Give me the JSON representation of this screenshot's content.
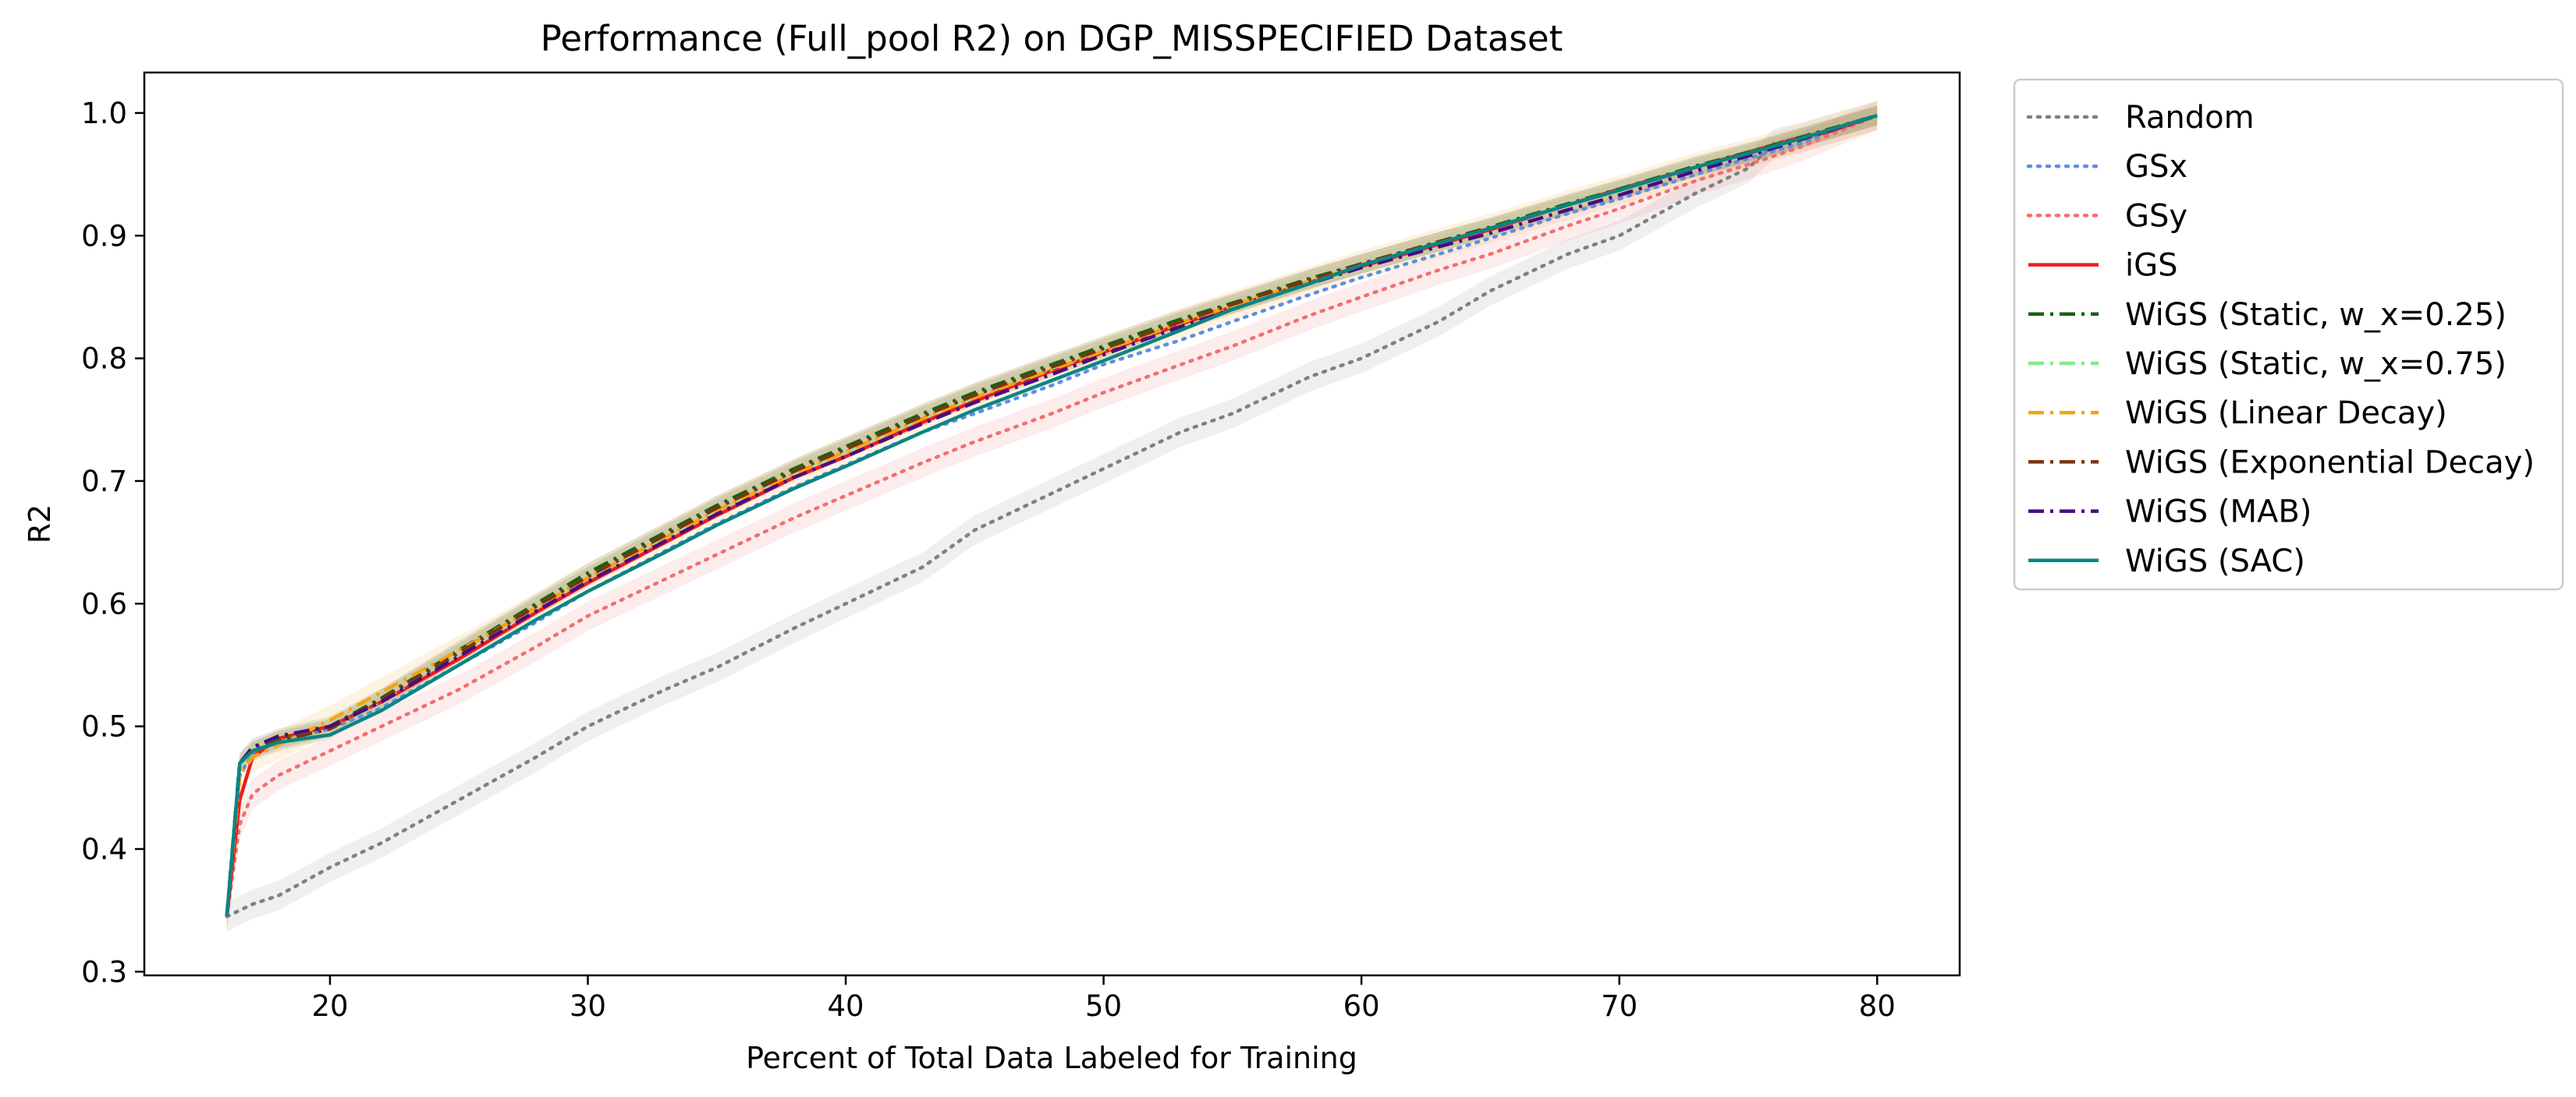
{
  "chart_data": {
    "type": "line",
    "title": "Performance (Full_pool R2) on DGP_MISSPECIFIED Dataset",
    "xlabel": "Percent of Total Data Labeled for Training",
    "ylabel": "R2",
    "xlim": [
      12.8,
      83.2
    ],
    "ylim": [
      0.297,
      1.033
    ],
    "xticks": [
      20,
      30,
      40,
      50,
      60,
      70,
      80
    ],
    "yticks": [
      0.3,
      0.4,
      0.5,
      0.6,
      0.7,
      0.8,
      0.9,
      1.0
    ],
    "xtick_labels": [
      "20",
      "30",
      "40",
      "50",
      "60",
      "70",
      "80"
    ],
    "ytick_labels": [
      "0.3",
      "0.4",
      "0.5",
      "0.6",
      "0.7",
      "0.8",
      "0.9",
      "1.0"
    ],
    "grid": false,
    "legend_position": "outside-right-top",
    "series": [
      {
        "name": "Random",
        "color": "#808080",
        "dash": "dotted",
        "band": 0.012,
        "x": [
          16,
          17,
          18,
          20,
          22,
          25,
          28,
          30,
          33,
          35,
          38,
          40,
          43,
          45,
          48,
          50,
          53,
          55,
          58,
          60,
          63,
          65,
          68,
          70,
          73,
          75,
          76,
          77,
          80
        ],
        "y": [
          0.345,
          0.355,
          0.362,
          0.385,
          0.405,
          0.44,
          0.475,
          0.5,
          0.53,
          0.548,
          0.58,
          0.6,
          0.63,
          0.66,
          0.69,
          0.71,
          0.74,
          0.755,
          0.785,
          0.8,
          0.83,
          0.855,
          0.885,
          0.9,
          0.935,
          0.955,
          0.975,
          0.98,
          0.998
        ]
      },
      {
        "name": "GSx",
        "color": "#5b8fe6",
        "dash": "dotted",
        "band": 0,
        "x": [
          16,
          16.5,
          17,
          18,
          20,
          22,
          25,
          28,
          30,
          33,
          35,
          38,
          40,
          43,
          45,
          48,
          50,
          53,
          55,
          58,
          60,
          63,
          65,
          68,
          70,
          73,
          75,
          77,
          80
        ],
        "y": [
          0.345,
          0.46,
          0.478,
          0.488,
          0.498,
          0.515,
          0.55,
          0.585,
          0.61,
          0.643,
          0.665,
          0.695,
          0.713,
          0.74,
          0.755,
          0.778,
          0.795,
          0.815,
          0.83,
          0.852,
          0.866,
          0.885,
          0.898,
          0.918,
          0.93,
          0.95,
          0.963,
          0.975,
          0.998
        ]
      },
      {
        "name": "GSy",
        "color": "#f07070",
        "dash": "dotted",
        "band": 0.012,
        "x": [
          16,
          16.5,
          17,
          18,
          20,
          22,
          25,
          28,
          30,
          33,
          35,
          38,
          40,
          43,
          45,
          48,
          50,
          53,
          55,
          58,
          60,
          63,
          65,
          68,
          70,
          73,
          75,
          77,
          80
        ],
        "y": [
          0.345,
          0.42,
          0.445,
          0.46,
          0.48,
          0.5,
          0.53,
          0.565,
          0.59,
          0.62,
          0.64,
          0.67,
          0.688,
          0.715,
          0.732,
          0.755,
          0.772,
          0.795,
          0.81,
          0.835,
          0.85,
          0.872,
          0.885,
          0.908,
          0.922,
          0.945,
          0.958,
          0.972,
          0.998
        ]
      },
      {
        "name": "iGS",
        "color": "#ee1c1c",
        "dash": "solid",
        "band": 0,
        "x": [
          16,
          16.5,
          17,
          18,
          20,
          22,
          25,
          28,
          30,
          33,
          35,
          38,
          40,
          43,
          45,
          48,
          50,
          53,
          55,
          58,
          60,
          63,
          65,
          68,
          70,
          73,
          75,
          77,
          78,
          80
        ],
        "y": [
          0.345,
          0.44,
          0.475,
          0.49,
          0.5,
          0.52,
          0.555,
          0.593,
          0.617,
          0.65,
          0.672,
          0.703,
          0.72,
          0.748,
          0.765,
          0.79,
          0.805,
          0.828,
          0.842,
          0.862,
          0.875,
          0.893,
          0.905,
          0.925,
          0.938,
          0.956,
          0.968,
          0.98,
          0.984,
          0.998
        ]
      },
      {
        "name": "WiGS (Static, w_x=0.25)",
        "color": "#156315",
        "dash": "dashdot",
        "band": 0.008,
        "x": [
          16,
          16.5,
          17,
          18,
          20,
          22,
          25,
          28,
          30,
          33,
          35,
          38,
          40,
          43,
          45,
          48,
          50,
          53,
          55,
          58,
          60,
          63,
          65,
          68,
          70,
          73,
          75,
          77,
          80
        ],
        "y": [
          0.345,
          0.47,
          0.482,
          0.49,
          0.5,
          0.523,
          0.562,
          0.6,
          0.625,
          0.658,
          0.68,
          0.71,
          0.728,
          0.755,
          0.772,
          0.795,
          0.81,
          0.832,
          0.845,
          0.865,
          0.877,
          0.895,
          0.907,
          0.926,
          0.938,
          0.957,
          0.968,
          0.98,
          0.998
        ]
      },
      {
        "name": "WiGS (Static, w_x=0.75)",
        "color": "#86e886",
        "dash": "dashdot",
        "band": 0.006,
        "x": [
          16,
          16.5,
          17,
          18,
          20,
          22,
          25,
          28,
          30,
          33,
          35,
          38,
          40,
          43,
          45,
          48,
          50,
          53,
          55,
          58,
          60,
          63,
          65,
          68,
          70,
          73,
          75,
          77,
          80
        ],
        "y": [
          0.345,
          0.468,
          0.48,
          0.488,
          0.498,
          0.521,
          0.56,
          0.598,
          0.622,
          0.655,
          0.677,
          0.707,
          0.725,
          0.752,
          0.769,
          0.792,
          0.807,
          0.83,
          0.843,
          0.863,
          0.876,
          0.894,
          0.906,
          0.925,
          0.937,
          0.956,
          0.967,
          0.979,
          0.998
        ]
      },
      {
        "name": "WiGS (Linear Decay)",
        "color": "#f5a316",
        "dash": "dashdot",
        "band": 0.012,
        "x": [
          16,
          16.5,
          17,
          18,
          20,
          22,
          25,
          28,
          30,
          33,
          35,
          38,
          40,
          43,
          45,
          48,
          50,
          53,
          55,
          58,
          60,
          63,
          65,
          68,
          70,
          73,
          75,
          77,
          80
        ],
        "y": [
          0.345,
          0.46,
          0.475,
          0.485,
          0.505,
          0.528,
          0.562,
          0.597,
          0.621,
          0.654,
          0.676,
          0.706,
          0.724,
          0.751,
          0.768,
          0.791,
          0.806,
          0.829,
          0.843,
          0.863,
          0.876,
          0.894,
          0.906,
          0.925,
          0.937,
          0.956,
          0.967,
          0.979,
          0.998
        ]
      },
      {
        "name": "WiGS (Exponential Decay)",
        "color": "#7a3510",
        "dash": "dashdot",
        "band": 0.008,
        "x": [
          16,
          16.5,
          17,
          18,
          20,
          22,
          25,
          28,
          30,
          33,
          35,
          38,
          40,
          43,
          45,
          48,
          50,
          53,
          55,
          58,
          60,
          63,
          65,
          68,
          70,
          73,
          75,
          77,
          80
        ],
        "y": [
          0.345,
          0.47,
          0.48,
          0.488,
          0.498,
          0.522,
          0.56,
          0.598,
          0.622,
          0.656,
          0.678,
          0.708,
          0.726,
          0.753,
          0.77,
          0.793,
          0.808,
          0.83,
          0.844,
          0.864,
          0.877,
          0.895,
          0.906,
          0.925,
          0.937,
          0.956,
          0.967,
          0.979,
          0.998
        ]
      },
      {
        "name": "WiGS (MAB)",
        "color": "#4b0a82",
        "dash": "dashdot",
        "band": 0,
        "x": [
          16,
          16.5,
          17,
          18,
          20,
          22,
          25,
          28,
          30,
          33,
          35,
          38,
          40,
          43,
          45,
          48,
          50,
          53,
          55,
          58,
          60,
          63,
          65,
          68,
          70,
          73,
          75,
          77,
          80
        ],
        "y": [
          0.345,
          0.47,
          0.483,
          0.492,
          0.5,
          0.52,
          0.557,
          0.594,
          0.618,
          0.651,
          0.673,
          0.703,
          0.72,
          0.747,
          0.764,
          0.787,
          0.803,
          0.826,
          0.84,
          0.861,
          0.874,
          0.891,
          0.902,
          0.921,
          0.933,
          0.953,
          0.965,
          0.978,
          0.998
        ]
      },
      {
        "name": "WiGS (SAC)",
        "color": "#0a8585",
        "dash": "solid",
        "band": 0,
        "x": [
          16,
          16.5,
          17,
          18,
          20,
          22,
          25,
          28,
          30,
          33,
          35,
          38,
          40,
          43,
          45,
          48,
          50,
          53,
          55,
          58,
          60,
          63,
          65,
          68,
          70,
          73,
          75,
          77,
          80
        ],
        "y": [
          0.345,
          0.47,
          0.48,
          0.487,
          0.493,
          0.513,
          0.55,
          0.587,
          0.61,
          0.642,
          0.664,
          0.694,
          0.712,
          0.74,
          0.758,
          0.782,
          0.798,
          0.823,
          0.84,
          0.861,
          0.876,
          0.894,
          0.906,
          0.925,
          0.937,
          0.956,
          0.967,
          0.979,
          0.998
        ]
      }
    ]
  }
}
